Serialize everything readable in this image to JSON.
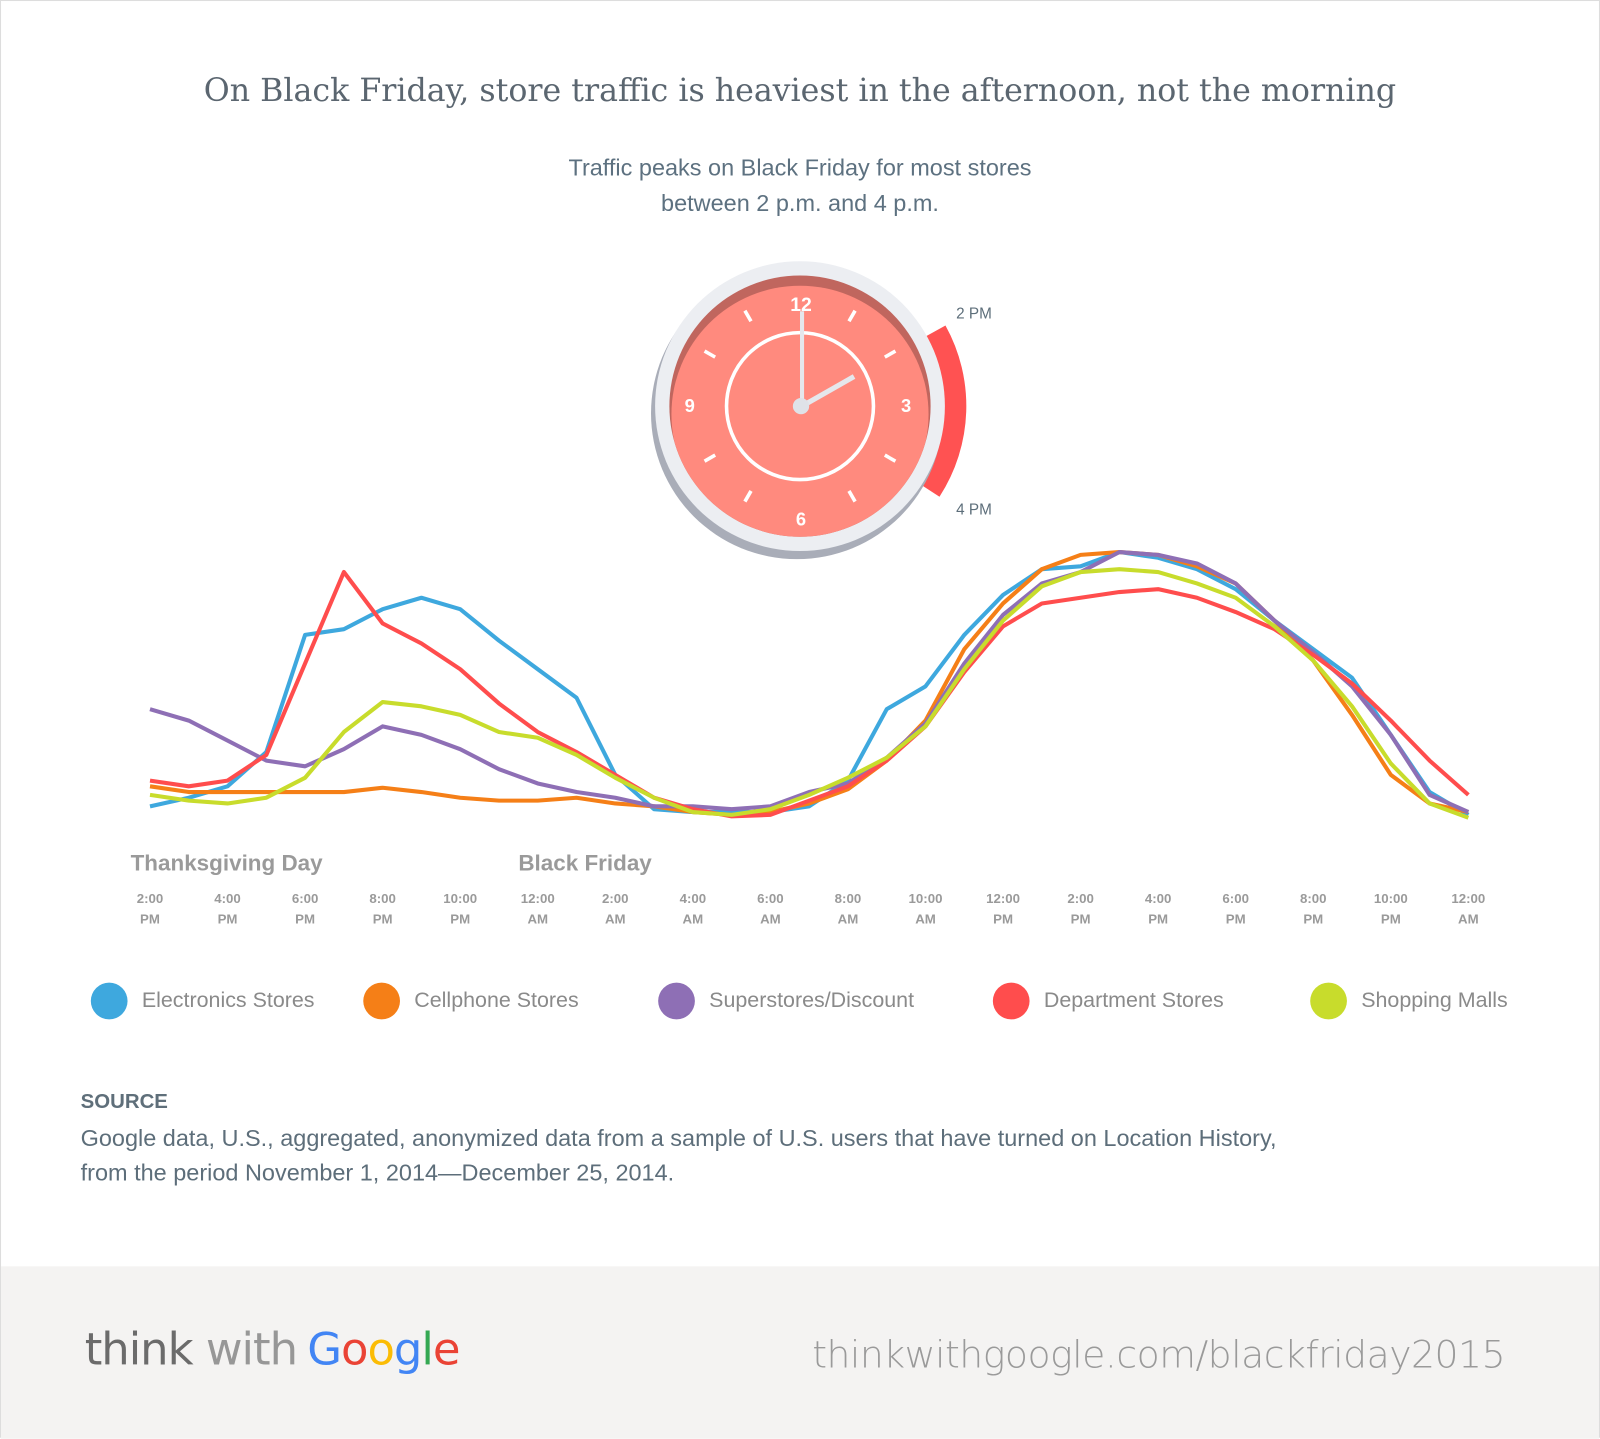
{
  "title": "On Black Friday, store traffic is heaviest in the afternoon, not the morning",
  "subtitle_lines": [
    "Traffic peaks on Black Friday for most stores",
    "between 2 p.m. and 4 p.m."
  ],
  "clock": {
    "numbers": [
      "12",
      "3",
      "6",
      "9"
    ],
    "range_start_label": "2 PM",
    "range_end_label": "4 PM",
    "time_shown": "2:00",
    "colors": {
      "face": "#ff8a7e",
      "highlight": "#ff5252",
      "ring": "#eceef2"
    }
  },
  "chart_data": {
    "type": "line",
    "title": "",
    "xlabel": "",
    "ylabel": "",
    "y_axis_shown": false,
    "grid": false,
    "legend_placement": "bottom",
    "day_labels": [
      {
        "label": "Thanksgiving Day",
        "at_index": 0
      },
      {
        "label": "Black Friday",
        "at_index": 10
      }
    ],
    "x_tick_labels": [
      [
        "2:00",
        "PM"
      ],
      [
        "4:00",
        "PM"
      ],
      [
        "6:00",
        "PM"
      ],
      [
        "8:00",
        "PM"
      ],
      [
        "10:00",
        "PM"
      ],
      [
        "12:00",
        "AM"
      ],
      [
        "2:00",
        "AM"
      ],
      [
        "4:00",
        "AM"
      ],
      [
        "6:00",
        "AM"
      ],
      [
        "8:00",
        "AM"
      ],
      [
        "10:00",
        "AM"
      ],
      [
        "12:00",
        "PM"
      ],
      [
        "2:00",
        "PM"
      ],
      [
        "4:00",
        "PM"
      ],
      [
        "6:00",
        "PM"
      ],
      [
        "8:00",
        "PM"
      ],
      [
        "10:00",
        "PM"
      ],
      [
        "12:00",
        "AM"
      ]
    ],
    "x_hours_from": "Thanksgiving 2:00 PM",
    "x": [
      0,
      1,
      2,
      3,
      4,
      5,
      6,
      7,
      8,
      9,
      10,
      11,
      12,
      13,
      14,
      15,
      16,
      17,
      18,
      19,
      20,
      21,
      22,
      23,
      24,
      25,
      26,
      27,
      28,
      29,
      30,
      31,
      32,
      33,
      34
    ],
    "ylim": [
      0,
      100
    ],
    "series": [
      {
        "name": "Electronics Stores",
        "color": "#3ea8de",
        "values": [
          11,
          14,
          18,
          30,
          71,
          73,
          80,
          84,
          80,
          69,
          59,
          49,
          22,
          10,
          9,
          9,
          9,
          11,
          20,
          45,
          53,
          71,
          85,
          94,
          95,
          100,
          98,
          94,
          87,
          76,
          66,
          56,
          36,
          16,
          8
        ]
      },
      {
        "name": "Cellphone Stores",
        "color": "#f57f17",
        "values": [
          18,
          16,
          16,
          16,
          16,
          16,
          17.5,
          16,
          14,
          13,
          13,
          14,
          12,
          11,
          9,
          8,
          9,
          12,
          17,
          27,
          41,
          66,
          82,
          94,
          99,
          100,
          99,
          95,
          89,
          76,
          62,
          43,
          22,
          12,
          9
        ]
      },
      {
        "name": "Superstores/Discount",
        "color": "#8e6fb5",
        "values": [
          45,
          41,
          34,
          27,
          25,
          31,
          39,
          36,
          31,
          24,
          19,
          16,
          14,
          11,
          11,
          10,
          11,
          16,
          19,
          28,
          40,
          61,
          78,
          89,
          93,
          100,
          99,
          96,
          89,
          76,
          65,
          53,
          36,
          15,
          9
        ]
      },
      {
        "name": "Department Stores",
        "color": "#ff4d4d",
        "values": [
          20,
          18,
          20,
          29,
          61,
          93,
          75,
          68,
          59,
          47,
          37,
          30,
          22,
          14,
          10,
          7.5,
          8,
          13,
          18,
          27,
          39,
          58,
          74,
          82,
          84,
          86,
          87,
          84,
          79,
          73,
          64,
          54,
          41,
          27,
          15
        ]
      },
      {
        "name": "Shopping Malls",
        "color": "#c8dc2c",
        "values": [
          15,
          13,
          12,
          14,
          21,
          37,
          47.5,
          46,
          43,
          37,
          35,
          29,
          21,
          14,
          9,
          8,
          10,
          15,
          21,
          28,
          39,
          59,
          76,
          88,
          93,
          94,
          93,
          89,
          84,
          74,
          62,
          46,
          26,
          12,
          7
        ]
      }
    ]
  },
  "source": {
    "heading": "SOURCE",
    "lines": [
      "Google data, U.S., aggregated, anonymized data from a sample of U.S. users that have turned on Location History,",
      "from the period November 1, 2014—December 25, 2014."
    ]
  },
  "footer": {
    "logo_think": "think",
    "logo_with": "with",
    "logo_google": [
      "G",
      "o",
      "o",
      "g",
      "l",
      "e"
    ],
    "logo_google_colors": [
      "#4285f4",
      "#ea4335",
      "#fbbc05",
      "#4285f4",
      "#34a853",
      "#ea4335"
    ],
    "url": "thinkwithgoogle.com/blackfriday2015"
  }
}
